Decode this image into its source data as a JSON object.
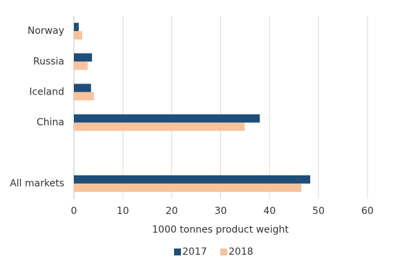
{
  "chart_data": {
    "type": "hbar",
    "categories": [
      "Norway",
      "Russia",
      "Iceland",
      "China",
      null,
      "All markets"
    ],
    "series": [
      {
        "name": "2017",
        "color": "#1f4e79",
        "values": [
          1.0,
          3.7,
          3.5,
          38.0,
          null,
          48.3
        ]
      },
      {
        "name": "2018",
        "color": "#f8c39b",
        "values": [
          1.7,
          2.8,
          4.1,
          34.9,
          null,
          46.5
        ]
      }
    ],
    "x_label": "1000 tonnes product weight",
    "xlim": [
      0,
      60
    ],
    "xticks": [
      0,
      10,
      20,
      30,
      40,
      50,
      60
    ],
    "grid": true,
    "legend": "bottom"
  }
}
